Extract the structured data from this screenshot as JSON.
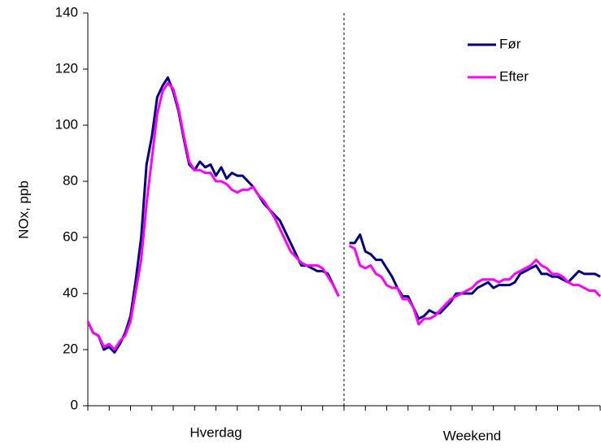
{
  "chart_data": {
    "type": "line",
    "y_label": "NOx, ppb",
    "x_groups": [
      "Hverdag",
      "Weekend"
    ],
    "x": [
      0,
      1,
      2,
      3,
      4,
      5,
      6,
      7,
      8,
      9,
      10,
      11,
      12,
      13,
      14,
      15,
      16,
      17,
      18,
      19,
      20,
      21,
      22,
      23,
      24,
      25,
      26,
      27,
      28,
      29,
      30,
      31,
      32,
      33,
      34,
      35,
      36,
      37,
      38,
      39,
      40,
      41,
      42,
      43,
      44,
      45,
      46,
      47,
      48,
      49,
      50,
      51,
      52,
      53,
      54,
      55,
      56,
      57,
      58,
      59,
      60,
      61,
      62,
      63,
      64,
      65,
      66,
      67,
      68,
      69,
      70,
      71,
      72,
      73,
      74,
      75,
      76,
      77,
      78,
      79,
      80,
      81,
      82,
      83,
      84,
      85,
      86,
      87,
      88,
      89,
      90,
      91,
      92,
      93,
      94,
      95,
      96
    ],
    "xlim": [
      0,
      96
    ],
    "xticks": [
      0,
      4,
      8,
      12,
      16,
      20,
      24,
      28,
      32,
      36,
      40,
      44,
      48,
      52,
      56,
      60,
      64,
      68,
      72,
      76,
      80,
      84,
      88,
      92,
      96
    ],
    "ylim": [
      0,
      140
    ],
    "yticks": [
      0,
      20,
      40,
      60,
      80,
      100,
      120,
      140
    ],
    "legend": "upper right",
    "series": [
      {
        "name": "Før",
        "color": "#000080",
        "values": [
          30,
          26,
          25,
          20,
          21,
          19,
          22,
          26,
          32,
          45,
          60,
          86,
          96,
          110,
          114,
          117,
          112,
          105,
          95,
          86,
          84,
          87,
          85,
          86,
          82,
          85,
          81,
          83,
          82,
          82,
          80,
          78,
          75,
          72,
          70,
          68,
          66,
          62,
          58,
          54,
          50,
          50,
          49,
          48,
          48,
          47,
          43,
          39,
          null,
          58,
          58,
          61,
          55,
          54,
          52,
          52,
          49,
          46,
          42,
          39,
          39,
          35,
          31,
          32,
          34,
          33,
          33,
          35,
          37,
          40,
          40,
          40,
          40,
          42,
          43,
          44,
          42,
          43,
          43,
          43,
          44,
          47,
          48,
          49,
          50,
          47,
          47,
          46,
          46,
          45,
          44,
          46,
          48,
          47,
          47,
          47,
          46
        ]
      },
      {
        "name": "Efter",
        "color": "#ff00ff",
        "values": [
          30,
          26,
          25,
          21,
          22,
          20,
          23,
          25,
          30,
          41,
          52,
          72,
          88,
          104,
          112,
          115,
          113,
          106,
          96,
          87,
          84,
          84,
          83,
          83,
          80,
          80,
          79,
          77,
          76,
          77,
          77,
          78,
          75,
          73,
          70,
          67,
          63,
          59,
          55,
          53,
          51,
          50,
          50,
          50,
          49,
          46,
          43,
          39,
          null,
          57,
          56,
          50,
          49,
          50,
          47,
          46,
          43,
          42,
          42,
          38,
          38,
          35,
          29,
          31,
          31,
          32,
          34,
          36,
          38,
          39,
          40,
          41,
          42,
          44,
          45,
          45,
          45,
          44,
          45,
          45,
          47,
          48,
          49,
          50,
          52,
          50,
          49,
          47,
          47,
          46,
          44,
          43,
          43,
          42,
          41,
          41,
          39
        ]
      }
    ]
  }
}
